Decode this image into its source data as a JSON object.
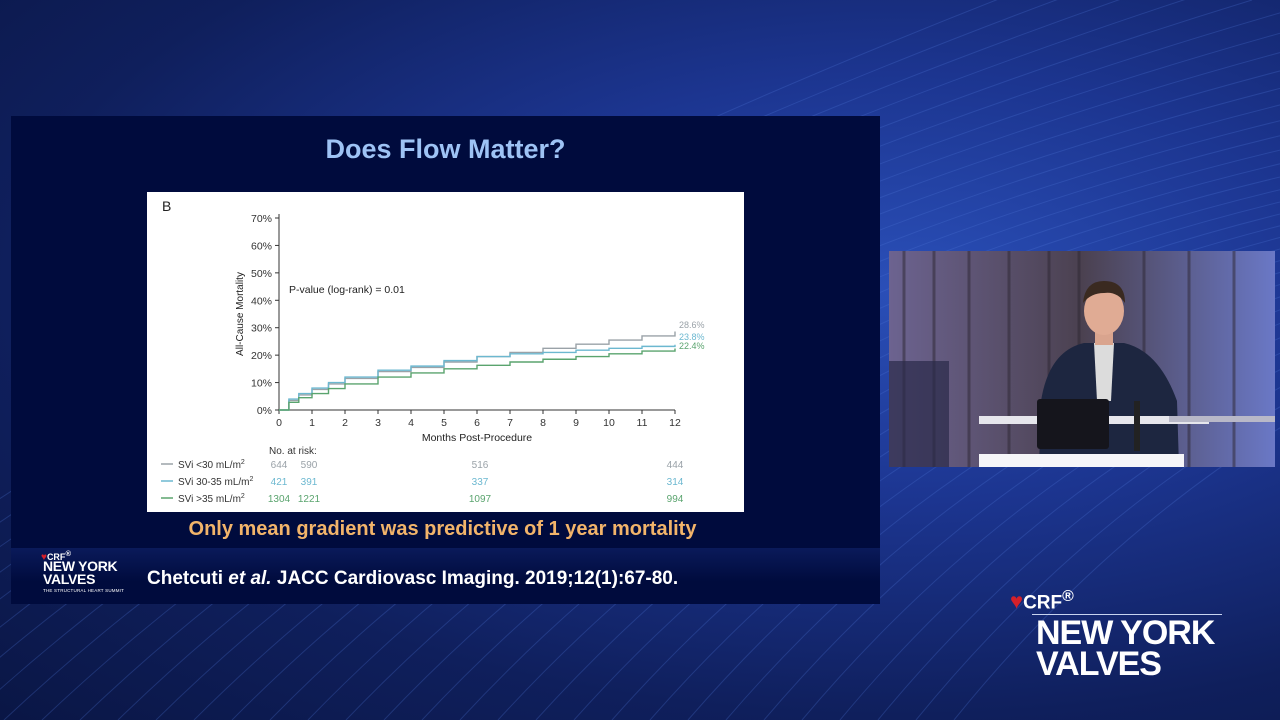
{
  "slide": {
    "title": "Does Flow Matter?",
    "takeaway": "Only mean gradient was predictive of 1 year mortality",
    "citation_authors": "Chetcuti",
    "citation_etal": "et al.",
    "citation_journal": "JACC Cardiovasc Imaging. 2019;12(1):67-80."
  },
  "logos": {
    "crf": "CRF",
    "reg": "®",
    "nyv_line1": "NEW YORK",
    "nyv_line2": "VALVES",
    "tagline": "THE STRUCTURAL HEART SUMMIT"
  },
  "colors": {
    "slide_bg": "#000b3d",
    "title": "#9ec3f5",
    "takeaway": "#f2b46a",
    "crf_red": "#d4202a"
  },
  "chart_data": {
    "type": "line",
    "panel_label": "B",
    "xlabel": "Months Post-Procedure",
    "ylabel": "All-Cause Mortality",
    "xlim": [
      0,
      12
    ],
    "ylim": [
      0,
      70
    ],
    "x_ticks": [
      0,
      1,
      2,
      3,
      4,
      5,
      6,
      7,
      8,
      9,
      10,
      11,
      12
    ],
    "y_ticks": [
      0,
      10,
      20,
      30,
      40,
      50,
      60,
      70
    ],
    "y_tick_suffix": "%",
    "annotation": "P-value (log-rank) = 0.01",
    "series": [
      {
        "name": "SVi <30 mL/m",
        "superscript": "2",
        "color": "#9aa2a8",
        "end_label": "28.6%",
        "x": [
          0,
          0.3,
          0.6,
          1,
          1.5,
          2,
          3,
          4,
          5,
          6,
          7,
          8,
          9,
          10,
          11,
          12
        ],
        "y": [
          0,
          3.5,
          5.5,
          7.5,
          9.5,
          11.5,
          14,
          15.5,
          17.5,
          19.5,
          21,
          22.5,
          24,
          25.5,
          27,
          28.6
        ],
        "risk": [
          644,
          590,
          516,
          444
        ]
      },
      {
        "name": "SVi 30-35 mL/m",
        "superscript": "2",
        "color": "#6cb8d0",
        "end_label": "23.8%",
        "x": [
          0,
          0.3,
          0.6,
          1,
          1.5,
          2,
          3,
          4,
          5,
          6,
          7,
          8,
          9,
          10,
          11,
          12
        ],
        "y": [
          0,
          4,
          6,
          8,
          10,
          12,
          14.5,
          16,
          18,
          19.5,
          20.5,
          21,
          21.8,
          22.5,
          23.2,
          23.8
        ],
        "risk": [
          421,
          391,
          337,
          314
        ]
      },
      {
        "name": "SVi >35 mL/m",
        "superscript": "2",
        "color": "#5aa46e",
        "end_label": "22.4%",
        "x": [
          0,
          0.3,
          0.6,
          1,
          1.5,
          2,
          3,
          4,
          5,
          6,
          7,
          8,
          9,
          10,
          11,
          12
        ],
        "y": [
          0,
          2.8,
          4.5,
          6,
          7.8,
          9.5,
          12,
          13.5,
          15,
          16.3,
          17.5,
          18.5,
          19.5,
          20.5,
          21.5,
          22.4
        ],
        "risk": [
          1304,
          1221,
          1097,
          994
        ]
      }
    ],
    "risk_table": {
      "title": "No. at risk:",
      "months": [
        0,
        1,
        6,
        12
      ]
    }
  }
}
